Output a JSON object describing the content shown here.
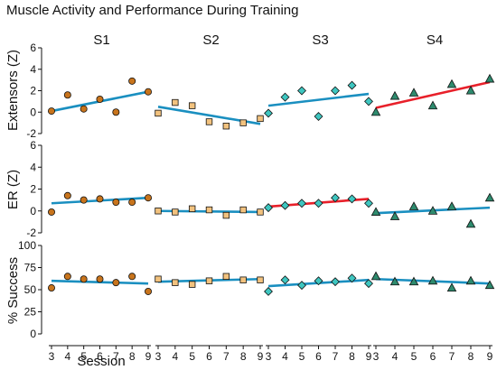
{
  "title": "Muscle Activity and Performance During Training",
  "xlabel": "Session",
  "colors": {
    "trend": "#1a8fc0",
    "trend_highlight": "#e8202a",
    "S1_marker": "#c8741c",
    "S2_marker": "#f2c27e",
    "S3_marker": "#3ec6c0",
    "S4_marker": "#2e8b6e",
    "marker_edge": "#111111"
  },
  "markers": {
    "S1": "circle",
    "S2": "square",
    "S3": "diamond",
    "S4": "triangle"
  },
  "chart_data": {
    "type": "scatter",
    "grid": false,
    "legend": "none",
    "columns": [
      "S1",
      "S2",
      "S3",
      "S4"
    ],
    "x_ticks": [
      3,
      4,
      5,
      6,
      7,
      8,
      9
    ],
    "rows": [
      {
        "ylabel": "Extensors (Z)",
        "ylim": [
          -2,
          6
        ],
        "y_ticks": [
          -2,
          0,
          2,
          4,
          6
        ],
        "panels": [
          {
            "session_group": "S1",
            "x": [
              3,
              4,
              5,
              6,
              7,
              8,
              9
            ],
            "y": [
              0.1,
              1.6,
              0.3,
              1.2,
              0.0,
              2.9,
              1.9
            ],
            "trend": [
              0.1,
              1.9
            ],
            "trend_color": "blue"
          },
          {
            "session_group": "S2",
            "x": [
              3,
              4,
              5,
              6,
              7,
              8,
              9
            ],
            "y": [
              -0.1,
              0.9,
              0.6,
              -0.9,
              -1.3,
              -1.0,
              -0.6
            ],
            "trend": [
              0.5,
              -1.1
            ],
            "trend_color": "blue"
          },
          {
            "session_group": "S3",
            "x": [
              3,
              4,
              5,
              6,
              7,
              8,
              9
            ],
            "y": [
              -0.1,
              1.4,
              2.0,
              -0.4,
              2.0,
              2.5,
              1.0
            ],
            "trend": [
              0.6,
              1.7
            ],
            "trend_color": "blue"
          },
          {
            "session_group": "S4",
            "x": [
              3,
              4,
              5,
              6,
              7,
              8,
              9
            ],
            "y": [
              0.0,
              1.5,
              1.8,
              0.6,
              2.6,
              2.0,
              3.1
            ],
            "trend": [
              0.4,
              2.8
            ],
            "trend_color": "red"
          }
        ]
      },
      {
        "ylabel": "ER (Z)",
        "ylim": [
          -2,
          6
        ],
        "y_ticks": [
          -2,
          0,
          2,
          4,
          6
        ],
        "panels": [
          {
            "session_group": "S1",
            "x": [
              3,
              4,
              5,
              6,
              7,
              8,
              9
            ],
            "y": [
              -0.1,
              1.4,
              1.0,
              1.1,
              0.8,
              0.8,
              1.2
            ],
            "trend": [
              0.7,
              1.2
            ],
            "trend_color": "blue"
          },
          {
            "session_group": "S2",
            "x": [
              3,
              4,
              5,
              6,
              7,
              8,
              9
            ],
            "y": [
              0.0,
              -0.1,
              0.2,
              0.1,
              -0.4,
              0.1,
              -0.1
            ],
            "trend": [
              0.0,
              -0.1
            ],
            "trend_color": "blue"
          },
          {
            "session_group": "S3",
            "x": [
              3,
              4,
              5,
              6,
              7,
              8,
              9
            ],
            "y": [
              0.3,
              0.5,
              0.7,
              0.7,
              1.2,
              1.1,
              0.7
            ],
            "trend": [
              0.4,
              1.1
            ],
            "trend_color": "red"
          },
          {
            "session_group": "S4",
            "x": [
              3,
              4,
              5,
              6,
              7,
              8,
              9
            ],
            "y": [
              -0.1,
              -0.5,
              0.4,
              0.0,
              0.4,
              -1.2,
              1.2
            ],
            "trend": [
              -0.2,
              0.3
            ],
            "trend_color": "blue"
          }
        ]
      },
      {
        "ylabel": "% Success",
        "ylim": [
          0,
          100
        ],
        "y_ticks": [
          0,
          25,
          50,
          75,
          100
        ],
        "panels": [
          {
            "session_group": "S1",
            "x": [
              3,
              4,
              5,
              6,
              7,
              8,
              9
            ],
            "y": [
              52,
              65,
              62,
              62,
              58,
              65,
              48
            ],
            "trend": [
              60,
              57
            ],
            "trend_color": "blue"
          },
          {
            "session_group": "S2",
            "x": [
              3,
              4,
              5,
              6,
              7,
              8,
              9
            ],
            "y": [
              62,
              58,
              56,
              60,
              65,
              61,
              61
            ],
            "trend": [
              59,
              62
            ],
            "trend_color": "blue"
          },
          {
            "session_group": "S3",
            "x": [
              3,
              4,
              5,
              6,
              7,
              8,
              9
            ],
            "y": [
              48,
              61,
              55,
              60,
              59,
              63,
              57
            ],
            "trend": [
              54,
              61
            ],
            "trend_color": "blue"
          },
          {
            "session_group": "S4",
            "x": [
              3,
              4,
              5,
              6,
              7,
              8,
              9
            ],
            "y": [
              65,
              59,
              59,
              60,
              52,
              60,
              55
            ],
            "trend": [
              62,
              57
            ],
            "trend_color": "blue"
          }
        ]
      }
    ]
  }
}
